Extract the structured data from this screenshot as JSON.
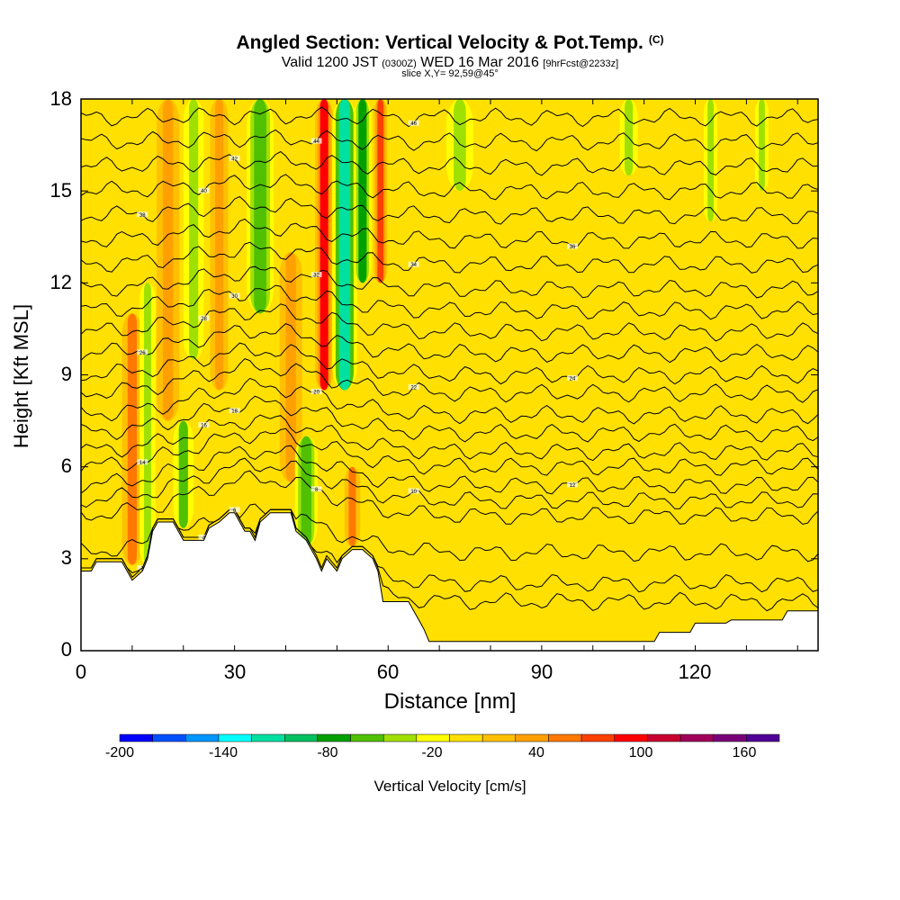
{
  "header": {
    "title": "Angled Section: Vertical Velocity & Pot.Temp.",
    "title_mark": "(C)",
    "subtitle_a": "Valid 1200 JST",
    "subtitle_b": "(0300Z)",
    "subtitle_c": "WED 16 Mar 2016",
    "subtitle_d": "[9hrFcst@2233z]",
    "subtitle_2": "slice X,Y= 92,59@45°"
  },
  "chart_data": {
    "type": "heatmap",
    "xlabel": "Distance [nm]",
    "ylabel": "Height [Kft MSL]",
    "xlim": [
      0,
      144
    ],
    "ylim": [
      0,
      18
    ],
    "x_ticks": [
      "0",
      "30",
      "60",
      "90",
      "120"
    ],
    "y_ticks": [
      "0",
      "3",
      "6",
      "9",
      "12",
      "15",
      "18"
    ],
    "colorbar": {
      "label": "Vertical Velocity [cm/s]",
      "levels": [
        -200,
        -180,
        -160,
        -140,
        -120,
        -100,
        -80,
        -60,
        -40,
        -20,
        0,
        20,
        40,
        60,
        80,
        100,
        120,
        140,
        160,
        180
      ],
      "tick_labels": [
        "-200",
        "-140",
        "-80",
        "-20",
        "40",
        "100",
        "160"
      ],
      "colors": [
        "#0000ff",
        "#0050ff",
        "#0096ff",
        "#00ffff",
        "#00e0a0",
        "#00c060",
        "#00a000",
        "#50c000",
        "#a0e000",
        "#ffff00",
        "#ffe000",
        "#ffc000",
        "#ffa000",
        "#ff7800",
        "#ff4000",
        "#ff0000",
        "#c80030",
        "#a0005a",
        "#780078",
        "#500096"
      ]
    },
    "terrain": [
      [
        0,
        2.6
      ],
      [
        2,
        2.6
      ],
      [
        3,
        2.9
      ],
      [
        8,
        2.9
      ],
      [
        9,
        2.6
      ],
      [
        10,
        2.3
      ],
      [
        12,
        2.6
      ],
      [
        13,
        3.0
      ],
      [
        14,
        3.9
      ],
      [
        15,
        4.2
      ],
      [
        18,
        4.2
      ],
      [
        19,
        3.9
      ],
      [
        20,
        3.6
      ],
      [
        24,
        3.6
      ],
      [
        25,
        4.0
      ],
      [
        27,
        4.2
      ],
      [
        29,
        4.5
      ],
      [
        30,
        4.5
      ],
      [
        32,
        3.9
      ],
      [
        33,
        3.9
      ],
      [
        34,
        3.6
      ],
      [
        35,
        4.2
      ],
      [
        37,
        4.5
      ],
      [
        41,
        4.5
      ],
      [
        42,
        3.9
      ],
      [
        44,
        3.6
      ],
      [
        45,
        3.3
      ],
      [
        46,
        3.0
      ],
      [
        47,
        2.6
      ],
      [
        48,
        3.0
      ],
      [
        50,
        2.6
      ],
      [
        51,
        3.0
      ],
      [
        53,
        3.3
      ],
      [
        55,
        3.3
      ],
      [
        57,
        3.0
      ],
      [
        58,
        2.6
      ],
      [
        59,
        1.6
      ],
      [
        64,
        1.6
      ],
      [
        65,
        1.3
      ],
      [
        66,
        1.0
      ],
      [
        67,
        0.7
      ],
      [
        68,
        0.3
      ],
      [
        112,
        0.3
      ],
      [
        113,
        0.6
      ],
      [
        119,
        0.6
      ],
      [
        120,
        0.9
      ],
      [
        126,
        0.9
      ],
      [
        127,
        1.0
      ],
      [
        137,
        1.0
      ],
      [
        138,
        1.3
      ],
      [
        144,
        1.3
      ]
    ],
    "updraft_bands": [
      {
        "x": 10,
        "w": 1.8,
        "z0": 2.8,
        "z1": 11.0,
        "value": 60
      },
      {
        "x": 17,
        "w": 2.0,
        "z0": 7.5,
        "z1": 18.0,
        "value": 50
      },
      {
        "x": 27,
        "w": 1.6,
        "z0": 8.5,
        "z1": 18.0,
        "value": 40
      },
      {
        "x": 41,
        "w": 2.0,
        "z0": 5.5,
        "z1": 13.0,
        "value": 40
      },
      {
        "x": 47.5,
        "w": 1.6,
        "z0": 8.5,
        "z1": 18.0,
        "value": 110
      },
      {
        "x": 53,
        "w": 1.4,
        "z0": 3.4,
        "z1": 6.0,
        "value": 60
      },
      {
        "x": 58.5,
        "w": 1.2,
        "z0": 12.0,
        "z1": 18.0,
        "value": 80
      }
    ],
    "downdraft_bands": [
      {
        "x": 13,
        "w": 1.4,
        "z0": 2.8,
        "z1": 12.0,
        "value": -40
      },
      {
        "x": 20,
        "w": 1.8,
        "z0": 4.0,
        "z1": 7.5,
        "value": -50
      },
      {
        "x": 22,
        "w": 1.8,
        "z0": 9.5,
        "z1": 18.0,
        "value": -40
      },
      {
        "x": 35,
        "w": 2.4,
        "z0": 11.0,
        "z1": 18.0,
        "value": -60
      },
      {
        "x": 44,
        "w": 2.0,
        "z0": 3.4,
        "z1": 7.0,
        "value": -60
      },
      {
        "x": 51.5,
        "w": 2.2,
        "z0": 8.5,
        "z1": 18.0,
        "value": -110
      },
      {
        "x": 55,
        "w": 1.6,
        "z0": 12.0,
        "z1": 18.0,
        "value": -80
      },
      {
        "x": 74,
        "w": 2.4,
        "z0": 15.0,
        "z1": 18.0,
        "value": -30
      },
      {
        "x": 107,
        "w": 1.6,
        "z0": 15.5,
        "z1": 18.0,
        "value": -30
      },
      {
        "x": 123,
        "w": 1.2,
        "z0": 14.0,
        "z1": 18.0,
        "value": -30
      },
      {
        "x": 133,
        "w": 1.2,
        "z0": 15.0,
        "z1": 18.0,
        "value": -30
      }
    ],
    "isentropes": {
      "levels_z_at_right": [
        1.6,
        2.2,
        3.2,
        4.4,
        4.9,
        5.4,
        6.0,
        6.5,
        7.1,
        7.7,
        8.4,
        9.0,
        9.7,
        10.4,
        11.1,
        11.8,
        12.6,
        13.4,
        14.2,
        15.0,
        15.8,
        16.6,
        17.4
      ],
      "labels": [
        "2",
        "4",
        "6",
        "8",
        "10",
        "12",
        "14",
        "16",
        "18",
        "20",
        "22",
        "24",
        "26",
        "28",
        "30",
        "32",
        "34",
        "36",
        "38",
        "40",
        "42",
        "44",
        "46"
      ]
    }
  }
}
